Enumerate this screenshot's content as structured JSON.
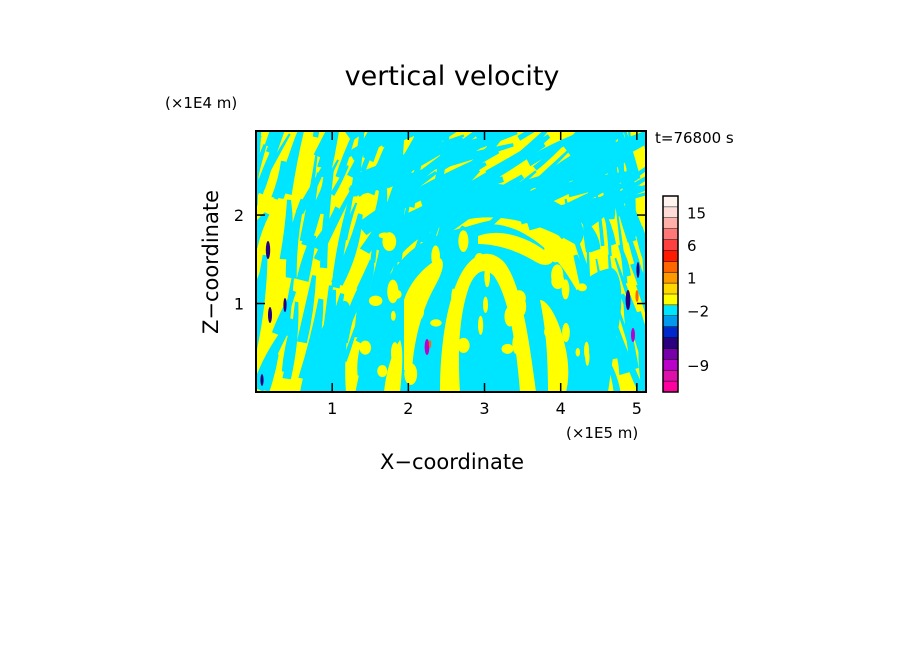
{
  "chart_data": {
    "type": "heatmap",
    "title": "vertical velocity",
    "xlabel": "X−coordinate",
    "ylabel": "Z−coordinate",
    "x_scale_label": "(×1E5 m)",
    "y_scale_label": "(×1E4 m)",
    "time_label": "t=76800 s",
    "xlim": [
      0,
      5.12
    ],
    "ylim": [
      0,
      2.95
    ],
    "x_ticks": [
      1,
      2,
      3,
      4,
      5
    ],
    "x_tick_labels": [
      "1",
      "2",
      "3",
      "4",
      "5"
    ],
    "y_ticks": [
      1,
      2
    ],
    "y_tick_labels": [
      "1",
      "2"
    ],
    "colorbar": {
      "levels": [
        -12,
        -10.5,
        -9,
        -7.5,
        -6,
        -4.5,
        -3,
        -2,
        -1,
        0,
        1,
        2,
        3,
        6,
        9,
        12,
        15,
        18,
        21
      ],
      "colors": [
        "#ff00a0",
        "#dd11aa",
        "#bb00cc",
        "#7700aa",
        "#2a007f",
        "#0028cc",
        "#0099ee",
        "#00e5ff",
        "#ffff00",
        "#ffd800",
        "#ff9900",
        "#ff6600",
        "#ff1a00",
        "#ff4040",
        "#ff7777",
        "#ffb0a8",
        "#ffdcd8",
        "#fff5f0"
      ],
      "tick_values": [
        -9,
        -2,
        1,
        6,
        15
      ],
      "tick_labels": [
        "−9",
        "−2",
        "1",
        "6",
        "15"
      ]
    },
    "field_colors": {
      "positive": "#ffff00",
      "negative": "#00e5ff",
      "strong_negative": "#2a007f",
      "extreme_negative": "#bb00cc",
      "strong_positive": "#ff6600"
    },
    "grid": false
  }
}
